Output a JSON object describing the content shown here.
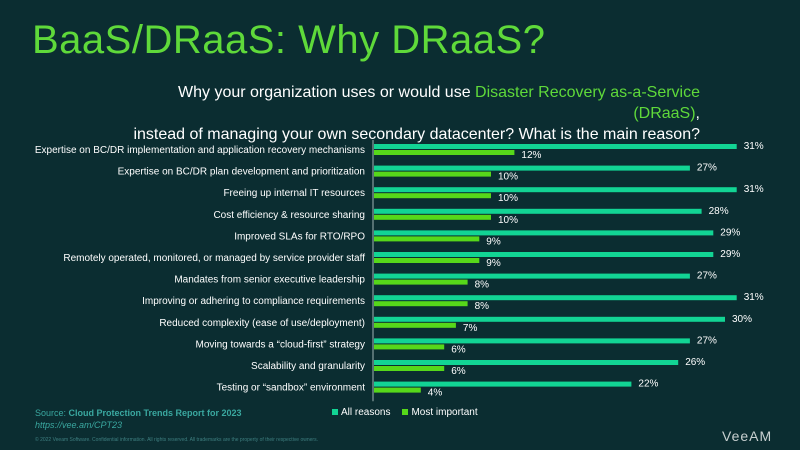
{
  "title": "BaaS/DRaaS: Why DRaaS?",
  "subtitle": {
    "pre": "Why your organization uses or would use ",
    "highlight": "Disaster Recovery as-a-Service (DRaaS)",
    "post": ",",
    "line2": "instead of managing your own secondary datacenter? What is the main reason?"
  },
  "colors": {
    "all": "#12d494",
    "most": "#56d81a",
    "accent": "#5fd93a"
  },
  "chart_data": {
    "type": "bar",
    "orientation": "horizontal",
    "categories": [
      "Expertise on BC/DR implementation and application recovery mechanisms",
      "Expertise on BC/DR plan development and prioritization",
      "Freeing up internal IT resources",
      "Cost efficiency & resource sharing",
      "Improved SLAs for RTO/RPO",
      "Remotely operated, monitored, or managed by service provider staff",
      "Mandates from senior executive leadership",
      "Improving or adhering to compliance requirements",
      "Reduced complexity (ease of use/deployment)",
      "Moving towards a “cloud-first” strategy",
      "Scalability and granularity",
      "Testing or “sandbox” environment"
    ],
    "series": [
      {
        "name": "All reasons",
        "values": [
          31,
          27,
          31,
          28,
          29,
          29,
          27,
          31,
          30,
          27,
          26,
          22
        ]
      },
      {
        "name": "Most important",
        "values": [
          12,
          10,
          10,
          10,
          9,
          9,
          8,
          8,
          7,
          6,
          6,
          4
        ]
      }
    ],
    "unit": "%",
    "xlim": [
      0,
      31
    ],
    "legend": "bottom"
  },
  "footer": {
    "source_label": "Source: ",
    "source": "Cloud Protection Trends Report for 2023",
    "url": "https://vee.am/CPT23",
    "copyright": "© 2022 Veeam Software. Confidential information. All rights reserved. All trademarks are the property of their respective owners.",
    "logo": "VeeAM"
  }
}
